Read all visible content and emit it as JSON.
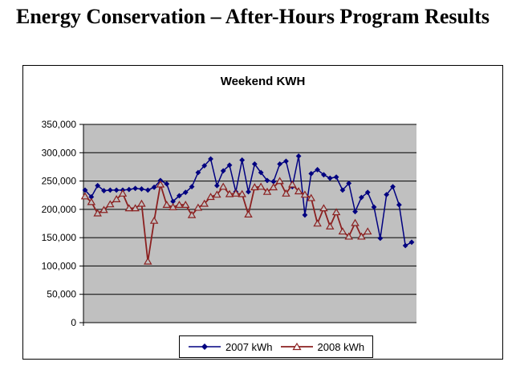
{
  "page": {
    "title": "Energy Conservation – After-Hours Program Results"
  },
  "chart_data": {
    "type": "line",
    "title": "Weekend KWH",
    "xlabel": "",
    "ylabel": "",
    "ylim": [
      0,
      350000
    ],
    "y_tick_interval": 50000,
    "y_tick_labels": [
      "0",
      "50,000",
      "100,000",
      "150,000",
      "200,000",
      "250,000",
      "300,000",
      "350,000"
    ],
    "x_tick_labels_visible": false,
    "grid": "horizontal",
    "plot_background": "#c0c0c0",
    "legend_position": "bottom",
    "series": [
      {
        "name": "2007 kWh",
        "color": "#000080",
        "marker": "diamond",
        "values": [
          234000,
          222000,
          242000,
          233000,
          234000,
          234000,
          234000,
          235000,
          237000,
          236000,
          234000,
          239000,
          251000,
          245000,
          214000,
          224000,
          230000,
          240000,
          265000,
          277000,
          289000,
          242000,
          268000,
          278000,
          231000,
          287000,
          231000,
          280000,
          265000,
          251000,
          249000,
          280000,
          285000,
          240000,
          294000,
          190000,
          263000,
          270000,
          261000,
          255000,
          257000,
          234000,
          246000,
          196000,
          221000,
          230000,
          204000,
          149000,
          226000,
          240000,
          208000,
          136000,
          142000
        ]
      },
      {
        "name": "2008 kWh",
        "color": "#8b2020",
        "marker": "triangle-open",
        "values": [
          223000,
          213000,
          193000,
          199000,
          209000,
          218000,
          228000,
          202000,
          202000,
          210000,
          108000,
          180000,
          244000,
          208000,
          204000,
          208000,
          208000,
          190000,
          203000,
          210000,
          222000,
          226000,
          240000,
          227000,
          228000,
          227000,
          191000,
          239000,
          240000,
          231000,
          239000,
          250000,
          228000,
          244000,
          232000,
          226000,
          220000,
          175000,
          202000,
          170000,
          195000,
          161000,
          152000,
          176000,
          152000,
          161000
        ]
      }
    ]
  }
}
